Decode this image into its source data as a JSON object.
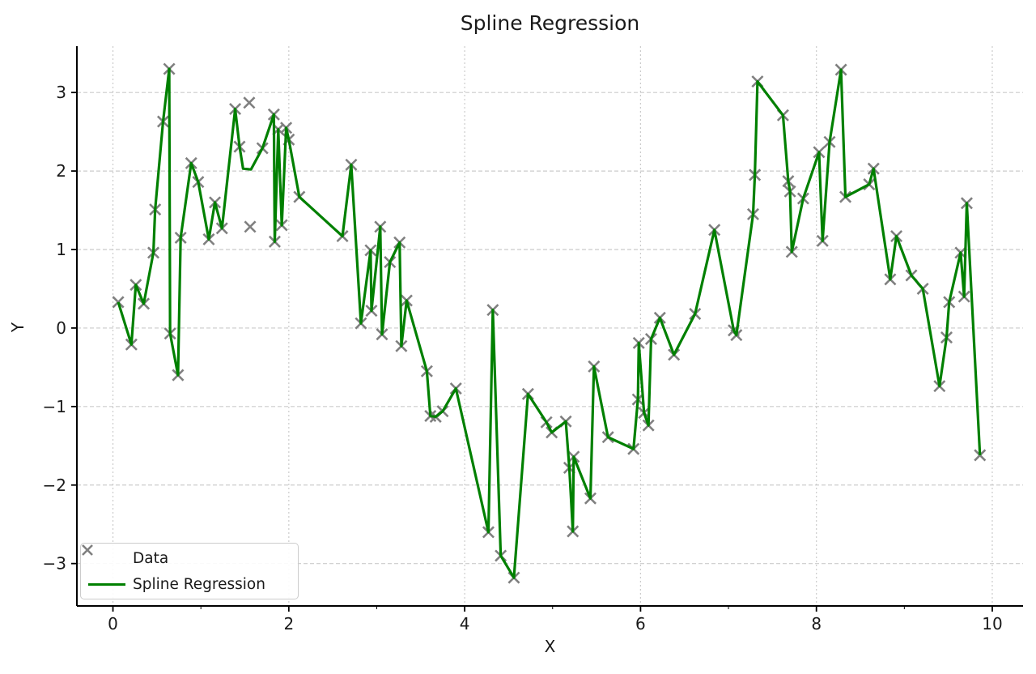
{
  "colors": {
    "line": "#008000",
    "marker": "#808080",
    "grid": "#cbcbcb",
    "spine": "#000000",
    "text": "#1a1a1a",
    "background": "#ffffff",
    "legend_border": "#cccccc"
  },
  "legend": {
    "items": [
      {
        "label": "Data",
        "icon": "x-marker-icon"
      },
      {
        "label": "Spline Regression",
        "icon": "line-sample-icon"
      }
    ]
  },
  "axes": {
    "xlim": [
      -0.41,
      10.35
    ],
    "ylim": [
      -3.54,
      3.59
    ],
    "xticks": [
      0,
      2,
      4,
      6,
      8,
      10
    ],
    "xtick_labels": [
      "0",
      "2",
      "4",
      "6",
      "8",
      "10"
    ],
    "xminorticks": [
      1,
      3,
      5,
      7,
      9
    ],
    "yticks": [
      -3,
      -2,
      -1,
      0,
      1,
      2,
      3
    ],
    "ytick_labels": [
      "−3",
      "−2",
      "−1",
      "0",
      "1",
      "2",
      "3"
    ],
    "grid": true
  },
  "chart_data": {
    "type": "scatter",
    "title": "Spline Regression",
    "xlabel": "X",
    "ylabel": "Y",
    "xlim": [
      -0.41,
      10.35
    ],
    "ylim": [
      -3.54,
      3.59
    ],
    "grid": true,
    "legend_position": "lower left",
    "series": [
      {
        "name": "Data",
        "type": "scatter",
        "marker": "x",
        "color": "#808080",
        "points": [
          [
            0.06,
            0.33
          ],
          [
            0.21,
            -0.21
          ],
          [
            0.26,
            0.55
          ],
          [
            0.35,
            0.31
          ],
          [
            0.46,
            0.96
          ],
          [
            0.48,
            1.51
          ],
          [
            0.57,
            2.63
          ],
          [
            0.64,
            3.3
          ],
          [
            0.65,
            -0.07
          ],
          [
            0.74,
            -0.6
          ],
          [
            0.77,
            1.15
          ],
          [
            0.89,
            2.1
          ],
          [
            0.97,
            1.86
          ],
          [
            1.09,
            1.13
          ],
          [
            1.16,
            1.6
          ],
          [
            1.24,
            1.27
          ],
          [
            1.39,
            2.79
          ],
          [
            1.44,
            2.31
          ],
          [
            1.55,
            2.87
          ],
          [
            1.56,
            1.29
          ],
          [
            1.7,
            2.29
          ],
          [
            1.83,
            2.72
          ],
          [
            1.84,
            1.1
          ],
          [
            1.88,
            2.53
          ],
          [
            1.92,
            1.31
          ],
          [
            1.97,
            2.55
          ],
          [
            2.0,
            2.4
          ],
          [
            2.12,
            1.67
          ],
          [
            2.61,
            1.17
          ],
          [
            2.71,
            2.08
          ],
          [
            2.82,
            0.06
          ],
          [
            2.93,
            0.99
          ],
          [
            2.94,
            0.22
          ],
          [
            3.04,
            1.29
          ],
          [
            3.06,
            -0.08
          ],
          [
            3.15,
            0.84
          ],
          [
            3.26,
            1.09
          ],
          [
            3.28,
            -0.23
          ],
          [
            3.34,
            0.35
          ],
          [
            3.57,
            -0.55
          ],
          [
            3.61,
            -1.12
          ],
          [
            3.67,
            -1.13
          ],
          [
            3.75,
            -1.06
          ],
          [
            3.9,
            -0.77
          ],
          [
            4.27,
            -2.6
          ],
          [
            4.32,
            0.23
          ],
          [
            4.41,
            -2.9
          ],
          [
            4.56,
            -3.18
          ],
          [
            4.72,
            -0.84
          ],
          [
            4.93,
            -1.2
          ],
          [
            4.99,
            -1.33
          ],
          [
            5.15,
            -1.19
          ],
          [
            5.19,
            -1.78
          ],
          [
            5.23,
            -2.59
          ],
          [
            5.24,
            -1.64
          ],
          [
            5.43,
            -2.17
          ],
          [
            5.47,
            -0.49
          ],
          [
            5.63,
            -1.39
          ],
          [
            5.92,
            -1.54
          ],
          [
            5.97,
            -0.91
          ],
          [
            5.98,
            -0.19
          ],
          [
            6.04,
            -1.08
          ],
          [
            6.09,
            -1.24
          ],
          [
            6.12,
            -0.14
          ],
          [
            6.22,
            0.13
          ],
          [
            6.38,
            -0.34
          ],
          [
            6.62,
            0.18
          ],
          [
            6.84,
            1.25
          ],
          [
            7.06,
            -0.03
          ],
          [
            7.09,
            -0.09
          ],
          [
            7.28,
            1.45
          ],
          [
            7.3,
            1.95
          ],
          [
            7.33,
            3.14
          ],
          [
            7.62,
            2.71
          ],
          [
            7.68,
            1.87
          ],
          [
            7.7,
            1.74
          ],
          [
            7.72,
            0.97
          ],
          [
            7.85,
            1.65
          ],
          [
            8.03,
            2.24
          ],
          [
            8.07,
            1.11
          ],
          [
            8.15,
            2.37
          ],
          [
            8.28,
            3.29
          ],
          [
            8.33,
            1.67
          ],
          [
            8.6,
            1.83
          ],
          [
            8.65,
            2.03
          ],
          [
            8.84,
            0.62
          ],
          [
            8.91,
            1.17
          ],
          [
            9.08,
            0.67
          ],
          [
            9.21,
            0.5
          ],
          [
            9.4,
            -0.74
          ],
          [
            9.48,
            -0.12
          ],
          [
            9.51,
            0.33
          ],
          [
            9.64,
            0.96
          ],
          [
            9.68,
            0.4
          ],
          [
            9.71,
            1.59
          ],
          [
            9.86,
            -1.62
          ]
        ]
      },
      {
        "name": "Spline Regression",
        "type": "line",
        "color": "#008000",
        "points": [
          [
            0.06,
            0.33
          ],
          [
            0.21,
            -0.21
          ],
          [
            0.26,
            0.55
          ],
          [
            0.35,
            0.31
          ],
          [
            0.46,
            0.96
          ],
          [
            0.48,
            1.51
          ],
          [
            0.57,
            2.63
          ],
          [
            0.64,
            3.3
          ],
          [
            0.65,
            -0.07
          ],
          [
            0.74,
            -0.6
          ],
          [
            0.77,
            1.15
          ],
          [
            0.89,
            2.1
          ],
          [
            0.97,
            1.86
          ],
          [
            1.09,
            1.13
          ],
          [
            1.16,
            1.6
          ],
          [
            1.24,
            1.27
          ],
          [
            1.39,
            2.79
          ],
          [
            1.44,
            2.31
          ],
          [
            1.48,
            2.03
          ],
          [
            1.57,
            2.02
          ],
          [
            1.7,
            2.29
          ],
          [
            1.83,
            2.72
          ],
          [
            1.84,
            1.1
          ],
          [
            1.88,
            2.53
          ],
          [
            1.92,
            1.31
          ],
          [
            1.97,
            2.55
          ],
          [
            2.0,
            2.4
          ],
          [
            2.12,
            1.67
          ],
          [
            2.61,
            1.17
          ],
          [
            2.71,
            2.08
          ],
          [
            2.82,
            0.06
          ],
          [
            2.93,
            0.99
          ],
          [
            2.94,
            0.22
          ],
          [
            3.04,
            1.29
          ],
          [
            3.06,
            -0.08
          ],
          [
            3.15,
            0.84
          ],
          [
            3.26,
            1.09
          ],
          [
            3.28,
            -0.23
          ],
          [
            3.34,
            0.35
          ],
          [
            3.57,
            -0.55
          ],
          [
            3.61,
            -1.12
          ],
          [
            3.67,
            -1.13
          ],
          [
            3.75,
            -1.06
          ],
          [
            3.9,
            -0.77
          ],
          [
            4.27,
            -2.6
          ],
          [
            4.32,
            0.23
          ],
          [
            4.41,
            -2.9
          ],
          [
            4.56,
            -3.18
          ],
          [
            4.72,
            -0.84
          ],
          [
            4.93,
            -1.2
          ],
          [
            4.99,
            -1.33
          ],
          [
            5.15,
            -1.19
          ],
          [
            5.19,
            -1.78
          ],
          [
            5.23,
            -2.59
          ],
          [
            5.24,
            -1.64
          ],
          [
            5.43,
            -2.17
          ],
          [
            5.47,
            -0.49
          ],
          [
            5.63,
            -1.39
          ],
          [
            5.92,
            -1.54
          ],
          [
            5.97,
            -0.91
          ],
          [
            5.98,
            -0.19
          ],
          [
            6.04,
            -1.08
          ],
          [
            6.09,
            -1.24
          ],
          [
            6.12,
            -0.14
          ],
          [
            6.22,
            0.13
          ],
          [
            6.38,
            -0.34
          ],
          [
            6.62,
            0.18
          ],
          [
            6.84,
            1.25
          ],
          [
            7.06,
            -0.03
          ],
          [
            7.09,
            -0.09
          ],
          [
            7.28,
            1.45
          ],
          [
            7.3,
            1.95
          ],
          [
            7.33,
            3.14
          ],
          [
            7.62,
            2.71
          ],
          [
            7.68,
            1.87
          ],
          [
            7.7,
            1.74
          ],
          [
            7.72,
            0.97
          ],
          [
            7.85,
            1.65
          ],
          [
            8.03,
            2.24
          ],
          [
            8.07,
            1.11
          ],
          [
            8.15,
            2.37
          ],
          [
            8.28,
            3.29
          ],
          [
            8.33,
            1.67
          ],
          [
            8.6,
            1.83
          ],
          [
            8.65,
            2.03
          ],
          [
            8.84,
            0.62
          ],
          [
            8.91,
            1.17
          ],
          [
            9.08,
            0.67
          ],
          [
            9.21,
            0.5
          ],
          [
            9.4,
            -0.74
          ],
          [
            9.48,
            -0.12
          ],
          [
            9.51,
            0.33
          ],
          [
            9.64,
            0.96
          ],
          [
            9.68,
            0.4
          ],
          [
            9.71,
            1.59
          ],
          [
            9.86,
            -1.62
          ]
        ]
      }
    ]
  }
}
